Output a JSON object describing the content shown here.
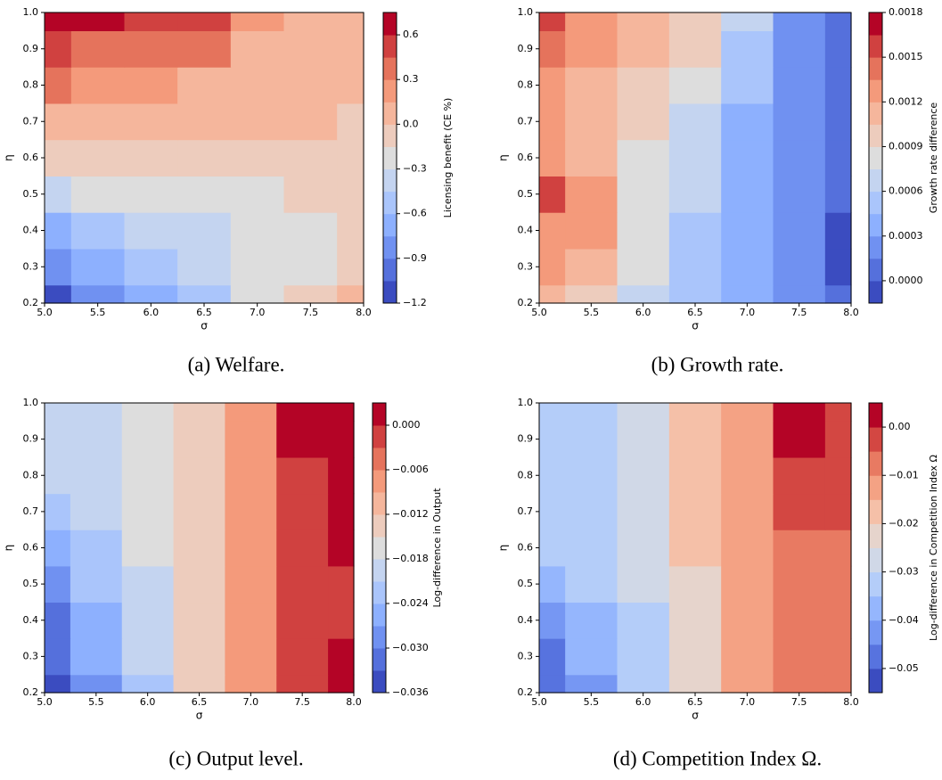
{
  "chart_data": [
    {
      "type": "contour",
      "caption": "(a) Welfare.",
      "xlabel": "σ",
      "ylabel": "η",
      "colorbar_label": "Licensing benefit (CE %)",
      "colormap": "coolwarm",
      "x": [
        5,
        5.5,
        6,
        6.5,
        7,
        7.5,
        8
      ],
      "y": [
        0.2,
        0.3,
        0.4,
        0.5,
        0.6,
        0.7,
        0.8,
        0.9,
        1
      ],
      "z": [
        [
          -1.15,
          -0.9,
          -0.65,
          -0.5,
          -0.3,
          -0.15,
          0.0
        ],
        [
          -0.9,
          -0.7,
          -0.55,
          -0.45,
          -0.3,
          -0.2,
          -0.15
        ],
        [
          -0.65,
          -0.5,
          -0.4,
          -0.35,
          -0.25,
          -0.2,
          -0.15
        ],
        [
          -0.35,
          -0.3,
          -0.25,
          -0.25,
          -0.2,
          -0.15,
          -0.1
        ],
        [
          -0.1,
          -0.05,
          -0.05,
          -0.05,
          -0.05,
          -0.05,
          -0.1
        ],
        [
          0.1,
          0.05,
          0.02,
          0.0,
          0.0,
          0.0,
          -0.02
        ],
        [
          0.3,
          0.25,
          0.2,
          0.1,
          0.05,
          0.0,
          0.0
        ],
        [
          0.45,
          0.4,
          0.35,
          0.3,
          0.1,
          0.05,
          0.0
        ],
        [
          0.65,
          0.6,
          0.5,
          0.45,
          0.2,
          0.1,
          0.05
        ]
      ],
      "xlim": [
        5,
        8
      ],
      "ylim": [
        0.2,
        1
      ],
      "xticks": [
        {
          "value": 5,
          "label": "5.0"
        },
        5.5,
        {
          "value": 6,
          "label": "6.0"
        },
        6.5,
        {
          "value": 7,
          "label": "7.0"
        },
        7.5,
        {
          "value": 8,
          "label": "8.0"
        }
      ],
      "yticks": [
        0.2,
        0.3,
        0.4,
        0.5,
        0.6,
        0.7,
        0.8,
        0.9,
        {
          "value": 1,
          "label": "1.0"
        }
      ],
      "levels": [
        -1.2,
        -1.05,
        -0.9,
        -0.75,
        -0.6,
        -0.45,
        -0.3,
        -0.15,
        0,
        0.15,
        0.3,
        0.45,
        0.6,
        0.75
      ],
      "cticks": [
        {
          "value": -1.2,
          "label": "−1.2"
        },
        {
          "value": -0.9,
          "label": "−0.9"
        },
        {
          "value": -0.6,
          "label": "−0.6"
        },
        {
          "value": -0.3,
          "label": "−0.3"
        },
        {
          "value": 0,
          "label": "0.0"
        },
        0.3,
        0.6
      ]
    },
    {
      "type": "contour",
      "caption": "(b) Growth rate.",
      "xlabel": "σ",
      "ylabel": "η",
      "colorbar_label": "Growth rate difference",
      "colormap": "coolwarm",
      "x": [
        5,
        5.5,
        6,
        6.5,
        7,
        7.5,
        8
      ],
      "y": [
        0.2,
        0.3,
        0.4,
        0.5,
        0.6,
        0.7,
        0.8,
        0.9,
        1
      ],
      "z": [
        [
          0.00105,
          0.0009,
          0.0007,
          0.0005,
          0.0003,
          0.00015,
          0.0
        ],
        [
          0.0012,
          0.0011,
          0.00075,
          0.0005,
          0.0003,
          0.00015,
          -0.0001
        ],
        [
          0.0013,
          0.0012,
          0.0008,
          0.00055,
          0.00035,
          0.00015,
          -0.0001
        ],
        [
          0.0015,
          0.0012,
          0.00085,
          0.0006,
          0.0004,
          0.0002,
          0.0
        ],
        [
          0.0013,
          0.0011,
          0.0008,
          0.0006,
          0.0004,
          0.0002,
          0.0
        ],
        [
          0.0012,
          0.0011,
          0.0009,
          0.0007,
          0.0004,
          0.0002,
          0.0
        ],
        [
          0.0013,
          0.0011,
          0.001,
          0.0008,
          0.0005,
          0.0002,
          0.0
        ],
        [
          0.0014,
          0.0012,
          0.0011,
          0.0009,
          0.0005,
          0.0002,
          5e-05
        ],
        [
          0.0015,
          0.0013,
          0.0011,
          0.0009,
          0.0006,
          0.0002,
          0.0001
        ]
      ],
      "xlim": [
        5,
        8
      ],
      "ylim": [
        0.2,
        1
      ],
      "xticks": [
        {
          "value": 5,
          "label": "5.0"
        },
        5.5,
        {
          "value": 6,
          "label": "6.0"
        },
        6.5,
        {
          "value": 7,
          "label": "7.0"
        },
        7.5,
        {
          "value": 8,
          "label": "8.0"
        }
      ],
      "yticks": [
        0.2,
        0.3,
        0.4,
        0.5,
        0.6,
        0.7,
        0.8,
        0.9,
        {
          "value": 1,
          "label": "1.0"
        }
      ],
      "levels": [
        -0.00015,
        0,
        0.00015,
        0.0003,
        0.00045,
        0.0006,
        0.00075,
        0.0009,
        0.00105,
        0.0012,
        0.00135,
        0.0015,
        0.00165,
        0.0018
      ],
      "cticks": [
        {
          "value": 0,
          "label": "0.0000"
        },
        0.0003,
        0.0006,
        0.0009,
        0.0012,
        0.0015,
        0.0018
      ]
    },
    {
      "type": "contour",
      "caption": "(c) Output level.",
      "xlabel": "σ",
      "ylabel": "η",
      "colorbar_label": "Log-difference in Output",
      "colormap": "coolwarm",
      "x": [
        5,
        5.5,
        6,
        6.5,
        7,
        7.5,
        8
      ],
      "y": [
        0.2,
        0.3,
        0.4,
        0.5,
        0.6,
        0.7,
        0.8,
        0.9,
        1
      ],
      "z": [
        [
          -0.034,
          -0.028,
          -0.022,
          -0.015,
          -0.008,
          -0.002,
          0.002
        ],
        [
          -0.033,
          -0.027,
          -0.021,
          -0.015,
          -0.008,
          -0.002,
          0.0
        ],
        [
          -0.032,
          -0.026,
          -0.02,
          -0.015,
          -0.008,
          -0.002,
          -0.001
        ],
        [
          -0.03,
          -0.024,
          -0.019,
          -0.015,
          -0.009,
          -0.003,
          -0.001
        ],
        [
          -0.026,
          -0.022,
          -0.018,
          -0.015,
          -0.009,
          -0.002,
          0.0
        ],
        [
          -0.022,
          -0.02,
          -0.018,
          -0.014,
          -0.008,
          -0.001,
          0.001
        ],
        [
          -0.021,
          -0.019,
          -0.017,
          -0.014,
          -0.008,
          -0.001,
          0.002
        ],
        [
          -0.021,
          -0.019,
          -0.017,
          -0.014,
          -0.008,
          0.0,
          0.002
        ],
        [
          -0.021,
          -0.019,
          -0.017,
          -0.014,
          -0.008,
          0.0,
          0.002
        ]
      ],
      "xlim": [
        5,
        8
      ],
      "ylim": [
        0.2,
        1
      ],
      "xticks": [
        {
          "value": 5,
          "label": "5.0"
        },
        5.5,
        {
          "value": 6,
          "label": "6.0"
        },
        6.5,
        {
          "value": 7,
          "label": "7.0"
        },
        7.5,
        {
          "value": 8,
          "label": "8.0"
        }
      ],
      "yticks": [
        0.2,
        0.3,
        0.4,
        0.5,
        0.6,
        0.7,
        0.8,
        0.9,
        {
          "value": 1,
          "label": "1.0"
        }
      ],
      "levels": [
        -0.036,
        -0.033,
        -0.03,
        -0.027,
        -0.024,
        -0.021,
        -0.018,
        -0.015,
        -0.012,
        -0.009,
        -0.006,
        -0.003,
        0,
        0.003
      ],
      "cticks": [
        {
          "value": -0.036,
          "label": "−0.036"
        },
        {
          "value": -0.03,
          "label": "−0.030"
        },
        {
          "value": -0.024,
          "label": "−0.024"
        },
        {
          "value": -0.018,
          "label": "−0.018"
        },
        {
          "value": -0.012,
          "label": "−0.012"
        },
        {
          "value": -0.006,
          "label": "−0.006"
        },
        {
          "value": 0,
          "label": "0.000"
        }
      ]
    },
    {
      "type": "contour",
      "caption": "(d) Competition Index Ω.",
      "xlabel": "σ",
      "ylabel": "η",
      "colorbar_label": "Log-difference in Competition Index Ω",
      "colormap": "coolwarm",
      "x": [
        5,
        5.5,
        6,
        6.5,
        7,
        7.5,
        8
      ],
      "y": [
        0.2,
        0.3,
        0.4,
        0.5,
        0.6,
        0.7,
        0.8,
        0.9,
        1
      ],
      "z": [
        [
          -0.05,
          -0.042,
          -0.033,
          -0.022,
          -0.013,
          -0.006,
          -0.006
        ],
        [
          -0.048,
          -0.04,
          -0.033,
          -0.022,
          -0.013,
          -0.006,
          -0.006
        ],
        [
          -0.045,
          -0.038,
          -0.031,
          -0.022,
          -0.013,
          -0.006,
          -0.006
        ],
        [
          -0.04,
          -0.035,
          -0.03,
          -0.021,
          -0.013,
          -0.007,
          -0.006
        ],
        [
          -0.035,
          -0.033,
          -0.028,
          -0.02,
          -0.012,
          -0.007,
          -0.006
        ],
        [
          -0.033,
          -0.031,
          -0.027,
          -0.02,
          -0.012,
          -0.005,
          -0.005
        ],
        [
          -0.033,
          -0.031,
          -0.027,
          -0.02,
          -0.012,
          -0.003,
          -0.005
        ],
        [
          -0.033,
          -0.031,
          -0.027,
          -0.019,
          -0.011,
          0.002,
          -0.005
        ],
        [
          -0.033,
          -0.031,
          -0.027,
          -0.019,
          -0.011,
          0.002,
          -0.005
        ]
      ],
      "xlim": [
        5,
        8
      ],
      "ylim": [
        0.2,
        1
      ],
      "xticks": [
        {
          "value": 5,
          "label": "5.0"
        },
        5.5,
        {
          "value": 6,
          "label": "6.0"
        },
        6.5,
        {
          "value": 7,
          "label": "7.0"
        },
        7.5,
        {
          "value": 8,
          "label": "8.0"
        }
      ],
      "yticks": [
        0.2,
        0.3,
        0.4,
        0.5,
        0.6,
        0.7,
        0.8,
        0.9,
        {
          "value": 1,
          "label": "1.0"
        }
      ],
      "levels": [
        -0.055,
        -0.05,
        -0.045,
        -0.04,
        -0.035,
        -0.03,
        -0.025,
        -0.02,
        -0.015,
        -0.01,
        -0.005,
        0,
        0.005
      ],
      "cticks": [
        {
          "value": -0.05,
          "label": "−0.05"
        },
        {
          "value": -0.04,
          "label": "−0.04"
        },
        {
          "value": -0.03,
          "label": "−0.03"
        },
        {
          "value": -0.02,
          "label": "−0.02"
        },
        {
          "value": -0.01,
          "label": "−0.01"
        },
        {
          "value": 0,
          "label": "0.00"
        }
      ]
    }
  ]
}
